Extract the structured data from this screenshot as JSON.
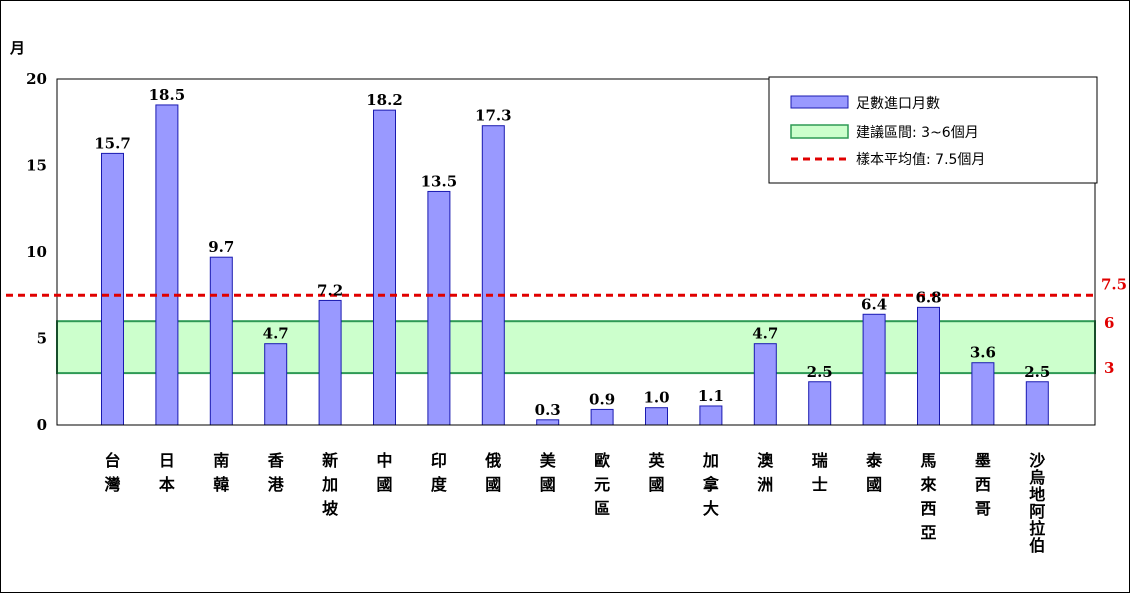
{
  "chart_data": {
    "type": "bar",
    "ylabel": "月",
    "ylim": [
      0,
      20
    ],
    "yticks": [
      "0",
      "5",
      "10",
      "15",
      "20"
    ],
    "categories": [
      "台灣",
      "日本",
      "南韓",
      "香港",
      "新加坡",
      "中國",
      "印度",
      "俄國",
      "美國",
      "歐元區",
      "英國",
      "加拿大",
      "澳洲",
      "瑞士",
      "泰國",
      "馬來西亞",
      "墨西哥",
      "沙烏地阿拉伯"
    ],
    "series": [
      {
        "name": "足數進口月數",
        "values": [
          15.7,
          18.5,
          9.7,
          4.7,
          7.2,
          18.2,
          13.5,
          17.3,
          0.3,
          0.9,
          1.0,
          1.1,
          4.7,
          2.5,
          6.4,
          6.8,
          3.6,
          2.5
        ],
        "labels": [
          "15.7",
          "18.5",
          "9.7",
          "4.7",
          "7.2",
          "18.2",
          "13.5",
          "17.3",
          "0.3",
          "0.9",
          "1.0",
          "1.1",
          "4.7",
          "2.5",
          "6.4",
          "6.8",
          "3.6",
          "2.5"
        ],
        "color": "#9999ff"
      }
    ],
    "band": {
      "name": "建議區間: 3~6個月",
      "from": 3,
      "to": 6,
      "color": "#ccffcc",
      "label_low": "3",
      "label_high": "6"
    },
    "average_line": {
      "name": "樣本平均值: 7.5個月",
      "value": 7.5,
      "label": "7.5",
      "color": "#e00000"
    },
    "legend_position": "top-right",
    "grid": false
  }
}
